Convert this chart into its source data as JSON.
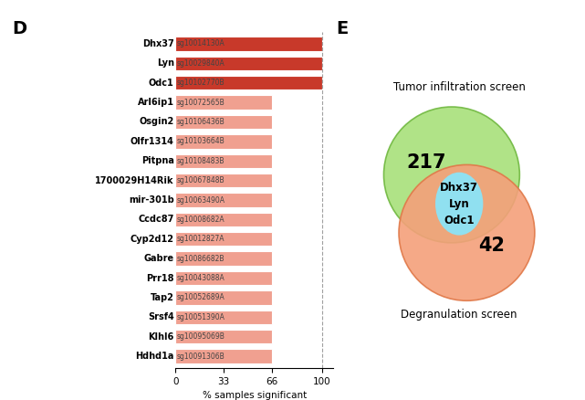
{
  "panel_d_label": "D",
  "panel_e_label": "E",
  "genes": [
    "Dhx37",
    "Lyn",
    "Odc1",
    "Arl6ip1",
    "Osgin2",
    "Olfr1314",
    "Pitpna",
    "1700029H14Rik",
    "mir-301b",
    "Ccdc87",
    "Cyp2d12",
    "Gabre",
    "Prr18",
    "Tap2",
    "Srsf4",
    "Klhl6",
    "Hdhd1a"
  ],
  "sgrnas": [
    "sg10014130A",
    "sg10029840A",
    "sg10102770B",
    "sg10072565B",
    "sg10106436B",
    "sg10103664B",
    "sg10108483B",
    "sg10067848B",
    "sg10063490A",
    "sg10008682A",
    "sg10012827A",
    "sg10086682B",
    "sg10043088A",
    "sg10052689A",
    "sg10051390A",
    "sg10095069B",
    "sg10091306B"
  ],
  "values": [
    100,
    100,
    100,
    66,
    66,
    66,
    66,
    66,
    66,
    66,
    66,
    66,
    66,
    66,
    66,
    66,
    66
  ],
  "bar_color_dark": "#c8392a",
  "bar_color_light": "#f0a090",
  "xlabel": "% samples significant",
  "xticks": [
    0,
    33,
    66,
    100
  ],
  "venn_left_color": "#a8e07a",
  "venn_right_color": "#f4a07a",
  "venn_overlap_color": "#90e0f0",
  "venn_left_count": "217",
  "venn_right_count": "42",
  "venn_overlap_genes": "Dhx37\nLyn\nOdc1",
  "venn_top_label": "Tumor infiltration screen",
  "venn_bottom_label": "Degranulation screen",
  "background_color": "#ffffff",
  "venn_left_edge": "#70b840",
  "venn_right_edge": "#e07848"
}
